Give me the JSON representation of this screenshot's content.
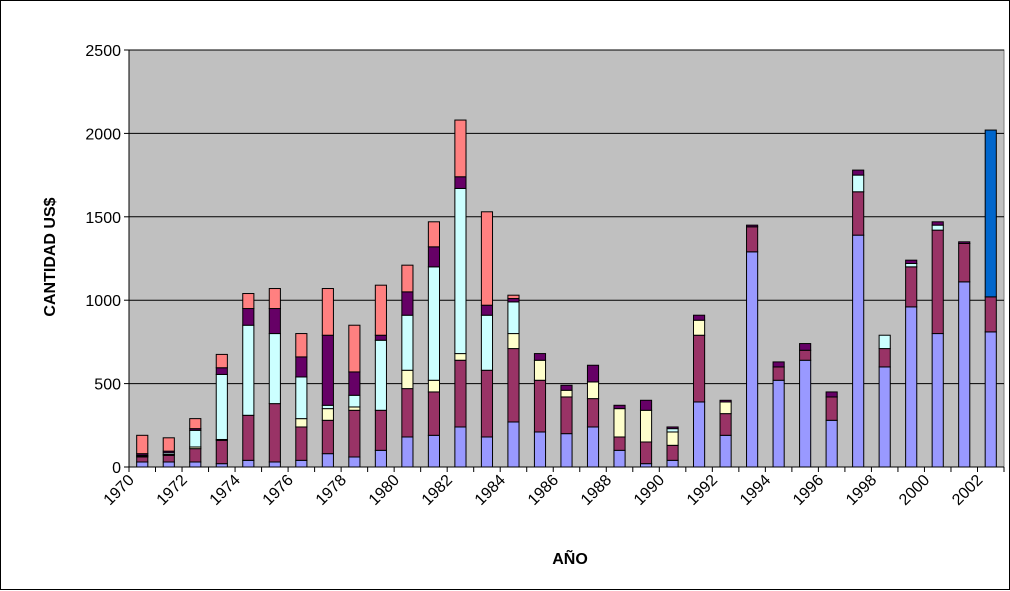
{
  "chart_data": {
    "type": "bar",
    "stacked": true,
    "title": "",
    "xlabel": "AÑO",
    "ylabel": "CANTIDAD US$",
    "ylim": [
      0,
      2500
    ],
    "yticks": [
      0,
      500,
      1000,
      1500,
      2000,
      2500
    ],
    "grid": true,
    "legend": "none",
    "colors": [
      "#9999ff",
      "#993366",
      "#ffffcc",
      "#ccffff",
      "#660066",
      "#ff8080",
      "#0066cc"
    ],
    "plot_background": "#c0c0c0",
    "categories": [
      1970,
      1971,
      1972,
      1973,
      1974,
      1975,
      1976,
      1977,
      1978,
      1979,
      1980,
      1981,
      1982,
      1983,
      1984,
      1985,
      1986,
      1987,
      1988,
      1989,
      1990,
      1991,
      1992,
      1993,
      1994,
      1995,
      1996,
      1997,
      1998,
      1999,
      2000,
      2001,
      2002
    ],
    "x_tick_labels": [
      "1970",
      "1972",
      "1974",
      "1976",
      "1978",
      "1980",
      "1982",
      "1984",
      "1986",
      "1988",
      "1990",
      "1992",
      "1994",
      "1996",
      "1998",
      "2000",
      "2002"
    ],
    "series": [
      {
        "values": [
          30,
          30,
          30,
          20,
          40,
          30,
          40,
          80,
          60,
          100,
          180,
          190,
          240,
          180,
          270,
          210,
          200,
          240,
          100,
          20,
          40,
          390,
          190,
          1290,
          520,
          640,
          280,
          1390,
          600,
          960,
          800,
          1110,
          810
        ]
      },
      {
        "values": [
          30,
          40,
          80,
          140,
          270,
          350,
          200,
          200,
          280,
          240,
          290,
          260,
          400,
          400,
          440,
          310,
          220,
          170,
          80,
          130,
          90,
          400,
          130,
          150,
          80,
          60,
          140,
          260,
          110,
          240,
          620,
          230,
          210
        ]
      },
      {
        "values": [
          5,
          5,
          10,
          5,
          0,
          0,
          50,
          70,
          20,
          0,
          110,
          70,
          40,
          0,
          90,
          120,
          40,
          100,
          170,
          190,
          80,
          90,
          70,
          0,
          0,
          0,
          0,
          0,
          0,
          0,
          0,
          0,
          0
        ]
      },
      {
        "values": [
          5,
          10,
          100,
          390,
          540,
          420,
          250,
          20,
          70,
          420,
          330,
          680,
          990,
          330,
          190,
          0,
          0,
          0,
          0,
          0,
          20,
          0,
          0,
          0,
          0,
          0,
          0,
          100,
          80,
          20,
          30,
          0,
          0
        ]
      },
      {
        "values": [
          10,
          10,
          10,
          40,
          100,
          150,
          120,
          420,
          140,
          30,
          140,
          120,
          70,
          60,
          20,
          40,
          30,
          100,
          20,
          60,
          10,
          30,
          10,
          10,
          30,
          40,
          30,
          30,
          0,
          20,
          20,
          10,
          0
        ]
      },
      {
        "values": [
          110,
          80,
          60,
          80,
          90,
          120,
          140,
          280,
          280,
          300,
          160,
          150,
          340,
          560,
          20,
          0,
          0,
          0,
          0,
          0,
          0,
          0,
          0,
          0,
          0,
          0,
          0,
          0,
          0,
          0,
          0,
          0,
          0
        ]
      },
      {
        "values": [
          0,
          0,
          0,
          0,
          0,
          0,
          0,
          0,
          0,
          0,
          0,
          0,
          0,
          0,
          0,
          0,
          0,
          0,
          0,
          0,
          0,
          0,
          0,
          0,
          0,
          0,
          0,
          0,
          0,
          0,
          0,
          0,
          1000
        ]
      }
    ]
  }
}
